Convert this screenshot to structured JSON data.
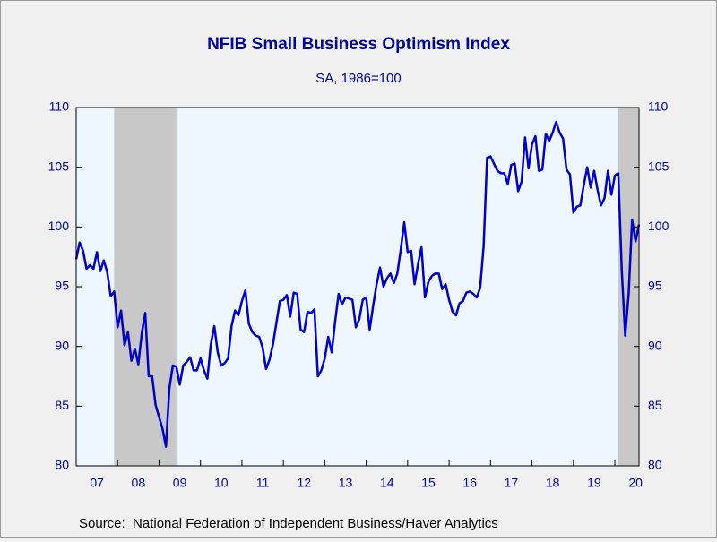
{
  "chart_data": {
    "type": "line",
    "title": "NFIB Small Business Optimism Index",
    "subtitle": "SA, 1986=100",
    "source": "Source:  National Federation of Independent Business/Haver Analytics",
    "categories": [
      null,
      null,
      null,
      null,
      null,
      null,
      "07",
      null,
      null,
      null,
      null,
      null,
      null,
      null,
      null,
      null,
      null,
      null,
      "08",
      null,
      null,
      null,
      null,
      null,
      null,
      null,
      null,
      null,
      null,
      null,
      "09",
      null,
      null,
      null,
      null,
      null,
      null,
      null,
      null,
      null,
      null,
      null,
      "10",
      null,
      null,
      null,
      null,
      null,
      null,
      null,
      null,
      null,
      null,
      null,
      "11",
      null,
      null,
      null,
      null,
      null,
      null,
      null,
      null,
      null,
      null,
      null,
      "12",
      null,
      null,
      null,
      null,
      null,
      null,
      null,
      null,
      null,
      null,
      null,
      "13",
      null,
      null,
      null,
      null,
      null,
      null,
      null,
      null,
      null,
      null,
      null,
      "14",
      null,
      null,
      null,
      null,
      null,
      null,
      null,
      null,
      null,
      null,
      null,
      "15",
      null,
      null,
      null,
      null,
      null,
      null,
      null,
      null,
      null,
      null,
      null,
      "16",
      null,
      null,
      null,
      null,
      null,
      null,
      null,
      null,
      null,
      null,
      null,
      "17",
      null,
      null,
      null,
      null,
      null,
      null,
      null,
      null,
      null,
      null,
      null,
      "18",
      null,
      null,
      null,
      null,
      null,
      null,
      null,
      null,
      null,
      null,
      null,
      "19",
      null,
      null,
      null,
      null,
      null,
      null,
      null,
      null,
      null,
      null,
      null,
      "20",
      null
    ],
    "series": [
      {
        "color": "#0000c8",
        "values": [
          97.3,
          98.7,
          98.0,
          96.5,
          96.8,
          96.5,
          97.9,
          96.3,
          97.2,
          96.2,
          94.2,
          94.6,
          91.6,
          93.0,
          90.1,
          91.2,
          88.8,
          89.8,
          88.5,
          91.1,
          92.8,
          87.5,
          87.5,
          85.1,
          84.1,
          83.1,
          81.6,
          86.5,
          88.4,
          88.3,
          86.8,
          88.4,
          88.7,
          89.1,
          88.0,
          88.0,
          89.0,
          88.0,
          87.3,
          90.2,
          91.7,
          89.5,
          88.4,
          88.6,
          89.0,
          91.7,
          93.0,
          92.6,
          93.8,
          94.7,
          91.9,
          91.2,
          90.9,
          90.8,
          89.9,
          88.1,
          88.9,
          90.2,
          92.0,
          93.8,
          93.9,
          94.3,
          92.5,
          94.5,
          94.4,
          91.4,
          91.2,
          92.9,
          92.8,
          93.1,
          87.5,
          88.0,
          89.0,
          90.8,
          89.5,
          92.1,
          94.4,
          93.5,
          94.1,
          94.0,
          93.9,
          91.6,
          92.3,
          93.9,
          94.1,
          91.4,
          93.4,
          95.2,
          96.6,
          95.0,
          95.7,
          96.1,
          95.3,
          96.1,
          98.1,
          100.4,
          97.9,
          98.0,
          95.2,
          96.9,
          98.3,
          94.1,
          95.4,
          95.9,
          96.1,
          96.1,
          94.8,
          95.2,
          93.9,
          92.9,
          92.6,
          93.6,
          93.8,
          94.5,
          94.6,
          94.4,
          94.1,
          94.9,
          98.4,
          105.8,
          105.9,
          105.3,
          104.7,
          104.5,
          104.5,
          103.6,
          105.2,
          105.3,
          103.0,
          103.8,
          107.5,
          104.9,
          106.9,
          107.6,
          104.7,
          104.8,
          107.8,
          107.2,
          107.9,
          108.8,
          107.9,
          107.4,
          104.8,
          104.4,
          101.2,
          101.7,
          101.8,
          103.5,
          105.0,
          103.3,
          104.7,
          103.1,
          101.8,
          102.4,
          104.7,
          102.7,
          104.3,
          104.5,
          96.4,
          90.9,
          94.4,
          100.6,
          98.8,
          100.2
        ]
      }
    ],
    "shaded": [
      [
        11,
        29
      ],
      [
        157,
        163
      ]
    ],
    "ylim": [
      80,
      110
    ],
    "yticks": [
      80,
      85,
      90,
      95,
      100,
      105,
      110
    ],
    "y2lim": [
      80,
      110
    ],
    "y2ticks": [
      80,
      85,
      90,
      95,
      100,
      105,
      110
    ]
  }
}
